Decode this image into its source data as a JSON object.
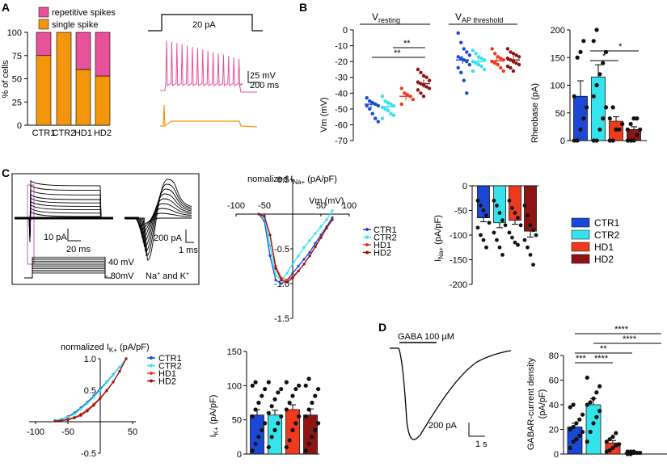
{
  "panels": {
    "A": "A",
    "B": "B",
    "C": "C",
    "D": "D"
  },
  "colors": {
    "ctr1": "#1b49d6",
    "ctr2": "#35e3eb",
    "hd1": "#ef3a1e",
    "hd2": "#8f1414",
    "repetitive": "#e8529a",
    "single": "#f4960c",
    "dot": "#111111"
  },
  "panelA": {
    "legend": {
      "repetitive": "repetitive spikes",
      "single": "single spike"
    },
    "stim_label": "20 pA",
    "scale_mv": "25 mV",
    "scale_ms": "200 ms",
    "chart_data": {
      "type": "bar",
      "stacked": true,
      "categories": [
        "CTR1",
        "CTR2",
        "HD1",
        "HD2"
      ],
      "series": [
        {
          "name": "single spike",
          "values": [
            75,
            100,
            60,
            53
          ]
        },
        {
          "name": "repetitive spikes",
          "values": [
            25,
            0,
            40,
            47
          ]
        }
      ],
      "ylabel": "% of cells",
      "yticks": [
        "100",
        "75",
        "50",
        "25",
        "0"
      ],
      "ylim": [
        0,
        100
      ]
    }
  },
  "panelB": {
    "vm": {
      "title": "V",
      "title_sub": "resting",
      "title2": "V",
      "title2_sub": "AP threshold",
      "ylabel": "Vm (mV)",
      "yticks": [
        "0",
        "-10",
        "-20",
        "-30",
        "-40",
        "-50",
        "-60",
        "-70"
      ],
      "sig1": "**",
      "sig2": "**",
      "chart_data": {
        "type": "scatter",
        "ylim": [
          -70,
          0
        ],
        "groups": [
          "CTR1",
          "CTR2",
          "HD1",
          "HD2"
        ],
        "resting": {
          "CTR1": [
            -43,
            -45,
            -46,
            -47,
            -48,
            -48,
            -50,
            -53,
            -56,
            -58
          ],
          "CTR2": [
            -42,
            -45,
            -46,
            -47,
            -48,
            -49,
            -50,
            -51,
            -53,
            -54,
            -56
          ],
          "HD1": [
            -37,
            -40,
            -41,
            -42,
            -44,
            -47
          ],
          "HD2": [
            -25,
            -27,
            -29,
            -30,
            -32,
            -33,
            -34,
            -35,
            -36,
            -37,
            -38,
            -40,
            -42
          ],
          "means": [
            -47,
            -48.5,
            -42,
            -34
          ]
        },
        "threshold": {
          "CTR1": [
            -2,
            -8,
            -12,
            -14,
            -16,
            -17,
            -18,
            -19,
            -20,
            -22,
            -24,
            -27,
            -32,
            -40
          ],
          "CTR2": [
            -13,
            -15,
            -17,
            -18,
            -19,
            -20,
            -21,
            -22,
            -23,
            -25,
            -26
          ],
          "HD1": [
            -12,
            -15,
            -17,
            -18,
            -19,
            -20,
            -21,
            -22,
            -24,
            -26
          ],
          "HD2": [
            -12,
            -14,
            -15,
            -16,
            -17,
            -18,
            -19,
            -20,
            -21,
            -22,
            -23,
            -24,
            -26
          ],
          "means": [
            -19,
            -20,
            -19.5,
            -19
          ]
        }
      }
    },
    "rheobase": {
      "ylabel": "Rheobase (pA)",
      "yticks": [
        "200",
        "150",
        "100",
        "50",
        "0"
      ],
      "sig1": "*",
      "sig2": "*",
      "chart_data": {
        "type": "bar",
        "categories": [
          "CTR1",
          "CTR2",
          "HD1",
          "HD2"
        ],
        "values": [
          80,
          115,
          35,
          20
        ],
        "errors": [
          28,
          22,
          8,
          5
        ],
        "ylim": [
          0,
          200
        ],
        "points": {
          "CTR1": [
            0,
            0,
            20,
            40,
            60,
            80,
            150,
            160,
            180
          ],
          "CTR2": [
            0,
            0,
            20,
            40,
            60,
            80,
            100,
            120,
            140,
            160,
            180,
            200
          ],
          "HD1": [
            0,
            0,
            20,
            20,
            30,
            40,
            60
          ],
          "HD2": [
            0,
            0,
            0,
            10,
            20,
            20,
            30,
            40,
            40
          ]
        }
      }
    }
  },
  "panelC": {
    "scale1_pa": "10 pA",
    "scale1_ms": "20 ms",
    "scale2_pa": "200 pA",
    "scale2_ms": "1 ms",
    "step_top": "40 mV",
    "step_bottom": "- 80mV",
    "ions": "Na",
    "ions_rest": " and K",
    "ina_norm": {
      "title_pre": "nomalized I",
      "title_sub": "Na+",
      "title_post": " (pA/pF)",
      "xlabel": "Vm (mV)",
      "xticks": [
        "-100",
        "-50",
        "50",
        "100"
      ],
      "yticks": [
        "0.5",
        "-0.5",
        "-1.0",
        "-1.5"
      ],
      "chart_data": {
        "type": "line",
        "xlim": [
          -100,
          100
        ],
        "ylim": [
          -1.5,
          0.5
        ],
        "x": [
          -60,
          -50,
          -40,
          -30,
          -20,
          -10,
          0,
          10,
          20,
          30,
          40,
          50,
          60,
          70
        ],
        "series": [
          {
            "name": "CTR1",
            "values": [
              0,
              -0.1,
              -0.6,
              -0.95,
              -1.0,
              -0.95,
              -0.85,
              -0.75,
              -0.65,
              -0.55,
              -0.42,
              -0.3,
              -0.18,
              -0.05
            ]
          },
          {
            "name": "CTR2",
            "values": [
              0,
              -0.05,
              -0.45,
              -0.88,
              -0.95,
              -0.85,
              -0.72,
              -0.6,
              -0.48,
              -0.38,
              -0.28,
              -0.18,
              -0.08,
              0.05
            ]
          },
          {
            "name": "HD1",
            "values": [
              0,
              -0.03,
              -0.3,
              -0.75,
              -0.92,
              -0.95,
              -0.9,
              -0.82,
              -0.72,
              -0.6,
              -0.47,
              -0.33,
              -0.2,
              -0.08
            ]
          },
          {
            "name": "HD2",
            "values": [
              0,
              -0.03,
              -0.3,
              -0.78,
              -0.95,
              -0.98,
              -0.92,
              -0.82,
              -0.72,
              -0.6,
              -0.47,
              -0.34,
              -0.2,
              -0.08
            ]
          }
        ]
      }
    },
    "ina_bar": {
      "ylabel_pre": "I",
      "ylabel_sub": "Na+",
      "ylabel_post": " (pA/pF)",
      "yticks": [
        "0",
        "-50",
        "-100",
        "-150",
        "-200"
      ],
      "chart_data": {
        "type": "bar",
        "categories": [
          "CTR1",
          "CTR2",
          "HD1",
          "HD2"
        ],
        "values": [
          -65,
          -75,
          -70,
          -92
        ],
        "errors": [
          8,
          10,
          8,
          12
        ],
        "ylim": [
          -200,
          0
        ],
        "points": {
          "CTR1": [
            -30,
            -40,
            -50,
            -60,
            -75,
            -85,
            -100,
            -110,
            -125
          ],
          "CTR2": [
            -30,
            -40,
            -55,
            -70,
            -80,
            -95,
            -110,
            -125,
            -140
          ],
          "HD1": [
            -30,
            -45,
            -55,
            -65,
            -80,
            -95,
            -105,
            -115,
            -120
          ],
          "HD2": [
            -40,
            -60,
            -80,
            -90,
            -100,
            -110,
            -125,
            -140,
            -160
          ]
        }
      }
    },
    "legend": [
      "CTR1",
      "CTR2",
      "HD1",
      "HD2"
    ],
    "ik_norm": {
      "title_pre": "normalized I",
      "title_sub": "K+",
      "title_post": " (pA/pF)",
      "xticks": [
        "-100",
        "-50",
        "50"
      ],
      "yticks": [
        "1.0",
        "0.5",
        "-0.5"
      ],
      "chart_data": {
        "type": "line",
        "xlim": [
          -100,
          50
        ],
        "ylim": [
          -0.5,
          1.0
        ],
        "x": [
          -70,
          -60,
          -50,
          -40,
          -30,
          -20,
          -10,
          0,
          10,
          20,
          30,
          40
        ],
        "series": [
          {
            "name": "CTR1",
            "values": [
              0.02,
              0.04,
              0.08,
              0.14,
              0.22,
              0.31,
              0.41,
              0.52,
              0.63,
              0.75,
              0.87,
              1.0
            ]
          },
          {
            "name": "CTR2",
            "values": [
              0.02,
              0.04,
              0.07,
              0.12,
              0.2,
              0.29,
              0.39,
              0.5,
              0.62,
              0.74,
              0.87,
              1.0
            ]
          },
          {
            "name": "HD1",
            "values": [
              0.01,
              0.02,
              0.04,
              0.07,
              0.12,
              0.19,
              0.28,
              0.38,
              0.5,
              0.63,
              0.8,
              1.0
            ]
          },
          {
            "name": "HD2",
            "values": [
              0.01,
              0.02,
              0.03,
              0.06,
              0.1,
              0.17,
              0.26,
              0.37,
              0.49,
              0.63,
              0.8,
              1.0
            ]
          }
        ]
      }
    },
    "ik_bar": {
      "ylabel_pre": "I",
      "ylabel_sub": "K+",
      "ylabel_post": " (pA/pF)",
      "yticks": [
        "150",
        "100",
        "50",
        "0"
      ],
      "chart_data": {
        "type": "bar",
        "categories": [
          "CTR1",
          "CTR2",
          "HD1",
          "HD2"
        ],
        "values": [
          57,
          57,
          65,
          57
        ],
        "errors": [
          8,
          7,
          7,
          9
        ],
        "ylim": [
          0,
          150
        ],
        "points": {
          "CTR1": [
            5,
            15,
            25,
            35,
            45,
            55,
            65,
            75,
            85,
            95,
            100,
            105
          ],
          "CTR2": [
            10,
            25,
            35,
            45,
            55,
            60,
            70,
            80,
            90,
            95,
            105
          ],
          "HD1": [
            10,
            20,
            35,
            45,
            55,
            65,
            75,
            85,
            95,
            100,
            105
          ],
          "HD2": [
            5,
            15,
            25,
            35,
            45,
            55,
            65,
            75,
            85,
            95,
            100,
            110
          ]
        }
      }
    }
  },
  "panelD": {
    "gaba_label": "GABA 100 µM",
    "scale_pa": "200 pA",
    "scale_s": "1 s",
    "ylabel1": "GABAR-current density",
    "ylabel2": "(pA/pF)",
    "yticks": [
      "80",
      "60",
      "40",
      "20",
      "0"
    ],
    "sig": [
      "****",
      "****",
      "**",
      "***",
      "****"
    ],
    "chart_data": {
      "type": "bar",
      "categories": [
        "CTR1",
        "CTR2",
        "HD1",
        "HD2"
      ],
      "values": [
        22,
        40,
        9,
        1
      ],
      "errors": [
        3,
        5,
        2,
        0.5
      ],
      "ylim": [
        0,
        80
      ],
      "points": {
        "CTR1": [
          5,
          10,
          12,
          15,
          18,
          20,
          22,
          25,
          28,
          32,
          38,
          40
        ],
        "CTR2": [
          10,
          18,
          25,
          30,
          35,
          40,
          42,
          45,
          50,
          55,
          62
        ],
        "HD1": [
          2,
          3,
          5,
          7,
          8,
          10,
          12,
          14,
          17
        ],
        "HD2": [
          0,
          0,
          1,
          1,
          1,
          2,
          2,
          2
        ]
      }
    }
  }
}
